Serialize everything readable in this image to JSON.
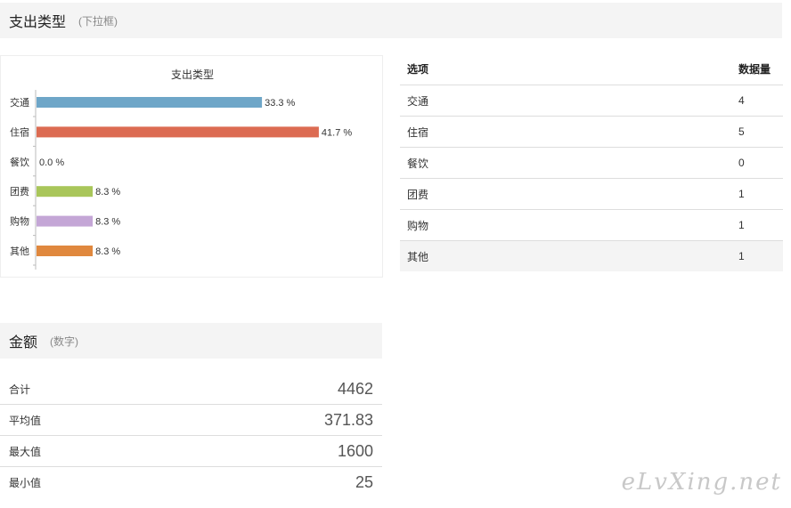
{
  "expense_section": {
    "title": "支出类型",
    "subtitle": "(下拉框)"
  },
  "amount_section": {
    "title": "金额",
    "subtitle": "(数字)"
  },
  "chart_data": {
    "type": "bar",
    "orientation": "horizontal",
    "title": "支出类型",
    "categories": [
      "交通",
      "住宿",
      "餐饮",
      "团费",
      "购物",
      "其他"
    ],
    "values": [
      33.3,
      41.7,
      0.0,
      8.3,
      8.3,
      8.3
    ],
    "labels": [
      "33.3 %",
      "41.7 %",
      "0.0 %",
      "8.3 %",
      "8.3 %",
      "8.3 %"
    ],
    "colors": [
      "#6ea6c8",
      "#dc6b52",
      "#999999",
      "#a9c65a",
      "#c4a6d6",
      "#e0883e"
    ],
    "xlim": [
      0,
      50
    ],
    "grid": false,
    "legend": "none"
  },
  "options_table": {
    "headers": [
      "选项",
      "数据量"
    ],
    "rows": [
      {
        "option": "交通",
        "count": "4"
      },
      {
        "option": "住宿",
        "count": "5"
      },
      {
        "option": "餐饮",
        "count": "0"
      },
      {
        "option": "团费",
        "count": "1"
      },
      {
        "option": "购物",
        "count": "1"
      },
      {
        "option": "其他",
        "count": "1"
      }
    ]
  },
  "stats": [
    {
      "label": "合计",
      "value": "4462"
    },
    {
      "label": "平均值",
      "value": "371.83"
    },
    {
      "label": "最大值",
      "value": "1600"
    },
    {
      "label": "最小值",
      "value": "25"
    }
  ],
  "watermark": "eLvXing.net"
}
